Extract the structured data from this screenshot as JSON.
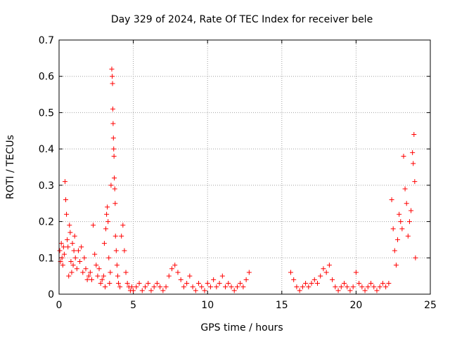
{
  "chart_data": {
    "type": "scatter",
    "title": "Day 329 of 2024, Rate Of TEC Index for receiver bele",
    "xlabel": "GPS time / hours",
    "ylabel": "ROTI / TECUs",
    "xlim": [
      0,
      25
    ],
    "ylim": [
      0,
      0.7
    ],
    "x_ticks": [
      "0",
      "5",
      "10",
      "15",
      "20",
      "25"
    ],
    "y_ticks": [
      "0",
      "0.1",
      "0.2",
      "0.3",
      "0.4",
      "0.5",
      "0.6",
      "0.7"
    ],
    "grid": true,
    "marker": "plus",
    "series": [
      {
        "color": "#ff0000",
        "points": [
          [
            0.05,
            0.12
          ],
          [
            0.1,
            0.09
          ],
          [
            0.15,
            0.14
          ],
          [
            0.2,
            0.1
          ],
          [
            0.25,
            0.08
          ],
          [
            0.3,
            0.13
          ],
          [
            0.35,
            0.11
          ],
          [
            0.4,
            0.31
          ],
          [
            0.45,
            0.26
          ],
          [
            0.5,
            0.22
          ],
          [
            0.55,
            0.15
          ],
          [
            0.6,
            0.13
          ],
          [
            0.65,
            0.05
          ],
          [
            0.7,
            0.19
          ],
          [
            0.75,
            0.17
          ],
          [
            0.8,
            0.09
          ],
          [
            0.85,
            0.06
          ],
          [
            0.9,
            0.14
          ],
          [
            0.95,
            0.08
          ],
          [
            1.0,
            0.12
          ],
          [
            1.05,
            0.16
          ],
          [
            1.1,
            0.1
          ],
          [
            1.2,
            0.07
          ],
          [
            1.3,
            0.12
          ],
          [
            1.4,
            0.09
          ],
          [
            1.5,
            0.13
          ],
          [
            1.6,
            0.06
          ],
          [
            1.7,
            0.1
          ],
          [
            1.8,
            0.07
          ],
          [
            1.9,
            0.04
          ],
          [
            2.0,
            0.05
          ],
          [
            2.1,
            0.06
          ],
          [
            2.2,
            0.04
          ],
          [
            2.3,
            0.19
          ],
          [
            2.4,
            0.11
          ],
          [
            2.5,
            0.08
          ],
          [
            2.6,
            0.05
          ],
          [
            2.7,
            0.07
          ],
          [
            2.8,
            0.03
          ],
          [
            2.9,
            0.04
          ],
          [
            3.0,
            0.05
          ],
          [
            3.05,
            0.14
          ],
          [
            3.1,
            0.02
          ],
          [
            3.15,
            0.18
          ],
          [
            3.2,
            0.22
          ],
          [
            3.25,
            0.24
          ],
          [
            3.3,
            0.2
          ],
          [
            3.35,
            0.1
          ],
          [
            3.4,
            0.03
          ],
          [
            3.45,
            0.06
          ],
          [
            3.5,
            0.3
          ],
          [
            3.55,
            0.62
          ],
          [
            3.58,
            0.6
          ],
          [
            3.6,
            0.58
          ],
          [
            3.62,
            0.51
          ],
          [
            3.64,
            0.47
          ],
          [
            3.66,
            0.43
          ],
          [
            3.68,
            0.4
          ],
          [
            3.7,
            0.38
          ],
          [
            3.72,
            0.32
          ],
          [
            3.75,
            0.29
          ],
          [
            3.78,
            0.25
          ],
          [
            3.8,
            0.16
          ],
          [
            3.85,
            0.12
          ],
          [
            3.9,
            0.08
          ],
          [
            3.95,
            0.05
          ],
          [
            4.0,
            0.03
          ],
          [
            4.1,
            0.02
          ],
          [
            4.2,
            0.16
          ],
          [
            4.3,
            0.19
          ],
          [
            4.4,
            0.12
          ],
          [
            4.5,
            0.06
          ],
          [
            4.6,
            0.03
          ],
          [
            4.7,
            0.02
          ],
          [
            4.8,
            0.01
          ],
          [
            4.9,
            0.02
          ],
          [
            5.0,
            0.01
          ],
          [
            5.2,
            0.02
          ],
          [
            5.4,
            0.03
          ],
          [
            5.6,
            0.01
          ],
          [
            5.8,
            0.02
          ],
          [
            6.0,
            0.03
          ],
          [
            6.2,
            0.01
          ],
          [
            6.4,
            0.02
          ],
          [
            6.6,
            0.03
          ],
          [
            6.8,
            0.02
          ],
          [
            7.0,
            0.01
          ],
          [
            7.2,
            0.02
          ],
          [
            7.4,
            0.05
          ],
          [
            7.6,
            0.07
          ],
          [
            7.8,
            0.08
          ],
          [
            8.0,
            0.06
          ],
          [
            8.2,
            0.04
          ],
          [
            8.4,
            0.02
          ],
          [
            8.6,
            0.03
          ],
          [
            8.8,
            0.05
          ],
          [
            9.0,
            0.02
          ],
          [
            9.2,
            0.01
          ],
          [
            9.4,
            0.03
          ],
          [
            9.6,
            0.02
          ],
          [
            9.8,
            0.01
          ],
          [
            10.0,
            0.03
          ],
          [
            10.2,
            0.02
          ],
          [
            10.4,
            0.04
          ],
          [
            10.6,
            0.02
          ],
          [
            10.8,
            0.03
          ],
          [
            11.0,
            0.05
          ],
          [
            11.2,
            0.02
          ],
          [
            11.4,
            0.03
          ],
          [
            11.6,
            0.02
          ],
          [
            11.8,
            0.01
          ],
          [
            12.0,
            0.02
          ],
          [
            12.2,
            0.03
          ],
          [
            12.4,
            0.02
          ],
          [
            12.6,
            0.04
          ],
          [
            12.8,
            0.06
          ],
          [
            15.6,
            0.06
          ],
          [
            15.8,
            0.04
          ],
          [
            16.0,
            0.02
          ],
          [
            16.2,
            0.01
          ],
          [
            16.4,
            0.02
          ],
          [
            16.6,
            0.03
          ],
          [
            16.8,
            0.02
          ],
          [
            17.0,
            0.03
          ],
          [
            17.2,
            0.04
          ],
          [
            17.4,
            0.03
          ],
          [
            17.6,
            0.05
          ],
          [
            17.8,
            0.07
          ],
          [
            18.0,
            0.06
          ],
          [
            18.2,
            0.08
          ],
          [
            18.4,
            0.04
          ],
          [
            18.6,
            0.02
          ],
          [
            18.8,
            0.01
          ],
          [
            19.0,
            0.02
          ],
          [
            19.2,
            0.03
          ],
          [
            19.4,
            0.02
          ],
          [
            19.6,
            0.01
          ],
          [
            19.8,
            0.02
          ],
          [
            20.0,
            0.06
          ],
          [
            20.2,
            0.03
          ],
          [
            20.4,
            0.02
          ],
          [
            20.6,
            0.01
          ],
          [
            20.8,
            0.02
          ],
          [
            21.0,
            0.03
          ],
          [
            21.2,
            0.02
          ],
          [
            21.4,
            0.01
          ],
          [
            21.6,
            0.02
          ],
          [
            21.8,
            0.03
          ],
          [
            22.0,
            0.02
          ],
          [
            22.2,
            0.03
          ],
          [
            22.4,
            0.26
          ],
          [
            22.5,
            0.18
          ],
          [
            22.6,
            0.12
          ],
          [
            22.7,
            0.08
          ],
          [
            22.8,
            0.15
          ],
          [
            22.9,
            0.22
          ],
          [
            23.0,
            0.2
          ],
          [
            23.1,
            0.18
          ],
          [
            23.2,
            0.38
          ],
          [
            23.3,
            0.29
          ],
          [
            23.4,
            0.25
          ],
          [
            23.5,
            0.16
          ],
          [
            23.6,
            0.2
          ],
          [
            23.7,
            0.23
          ],
          [
            23.8,
            0.39
          ],
          [
            23.85,
            0.36
          ],
          [
            23.9,
            0.44
          ],
          [
            23.95,
            0.31
          ],
          [
            24.0,
            0.1
          ]
        ]
      }
    ]
  }
}
